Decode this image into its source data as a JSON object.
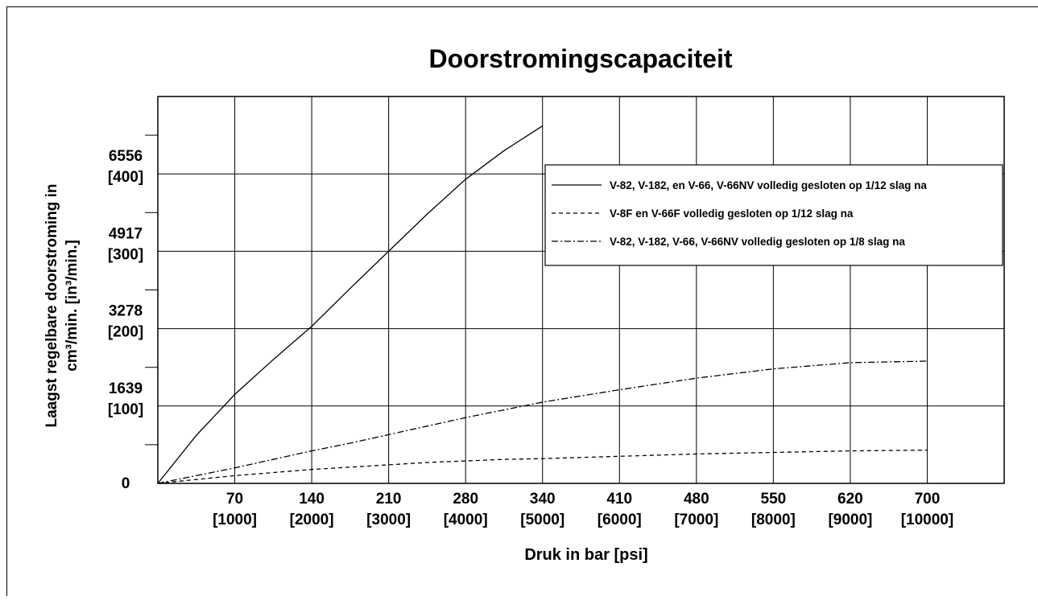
{
  "chart_data": {
    "type": "line",
    "title": "Doorstromingscapaciteit",
    "y_label": [
      "Laagst regelbare doorstroming in",
      "cm³/min. [in³/min.]"
    ],
    "x_label": "Druk in bar [psi]",
    "x": [
      0,
      500,
      1000,
      1500,
      2000,
      2500,
      3000,
      3500,
      4000,
      4500,
      5000,
      6000,
      7000,
      8000,
      9000,
      10000
    ],
    "series": [
      {
        "name": "V-82, V-182, en V-66, V-66NV volledig gesloten op 1/12 slag na",
        "color": "#000000",
        "dash": "solid",
        "values": [
          0,
          62,
          115,
          160,
          203,
          252,
          300,
          348,
          393,
          430,
          462,
          null,
          null,
          null,
          null,
          null
        ]
      },
      {
        "name": "V-8F en V-66F volledig gesloten op 1/12 slag na",
        "color": "#000000",
        "dash": "dashed",
        "values": [
          0,
          5,
          10,
          14,
          18,
          21,
          24,
          27,
          29,
          31,
          32,
          35,
          38,
          40,
          42,
          43
        ]
      },
      {
        "name": "V-82, V-182, V-66, V-66NV volledig gesloten op 1/8 slag na",
        "color": "#000000",
        "dash": "dashdot",
        "values": [
          0,
          10,
          20,
          31,
          42,
          52,
          63,
          74,
          85,
          95,
          105,
          121,
          136,
          148,
          156,
          158
        ]
      }
    ],
    "xlim": [
      0,
      11000
    ],
    "ylim": [
      0,
      500
    ],
    "xticks": [
      {
        "value": 1000,
        "label": [
          "70",
          "[1000]"
        ]
      },
      {
        "value": 2000,
        "label": [
          "140",
          "[2000]"
        ]
      },
      {
        "value": 3000,
        "label": [
          "210",
          "[3000]"
        ]
      },
      {
        "value": 4000,
        "label": [
          "280",
          "[4000]"
        ]
      },
      {
        "value": 5000,
        "label": [
          "340",
          "[5000]"
        ]
      },
      {
        "value": 6000,
        "label": [
          "410",
          "[6000]"
        ]
      },
      {
        "value": 7000,
        "label": [
          "480",
          "[7000]"
        ]
      },
      {
        "value": 8000,
        "label": [
          "550",
          "[8000]"
        ]
      },
      {
        "value": 9000,
        "label": [
          "620",
          "[9000]"
        ]
      },
      {
        "value": 10000,
        "label": [
          "700",
          "[10000]"
        ]
      }
    ],
    "yticks": [
      {
        "value": 0,
        "label": [
          "0"
        ]
      },
      {
        "value": 100,
        "label": [
          "1639",
          "[100]"
        ]
      },
      {
        "value": 200,
        "label": [
          "3278",
          "[200]"
        ]
      },
      {
        "value": 300,
        "label": [
          "4917",
          "[300]"
        ]
      },
      {
        "value": 400,
        "label": [
          "6556",
          "[400]"
        ]
      }
    ],
    "y_minor_ticks": [
      50,
      150,
      250,
      350,
      450
    ],
    "grid": true,
    "legend": "upper right"
  }
}
